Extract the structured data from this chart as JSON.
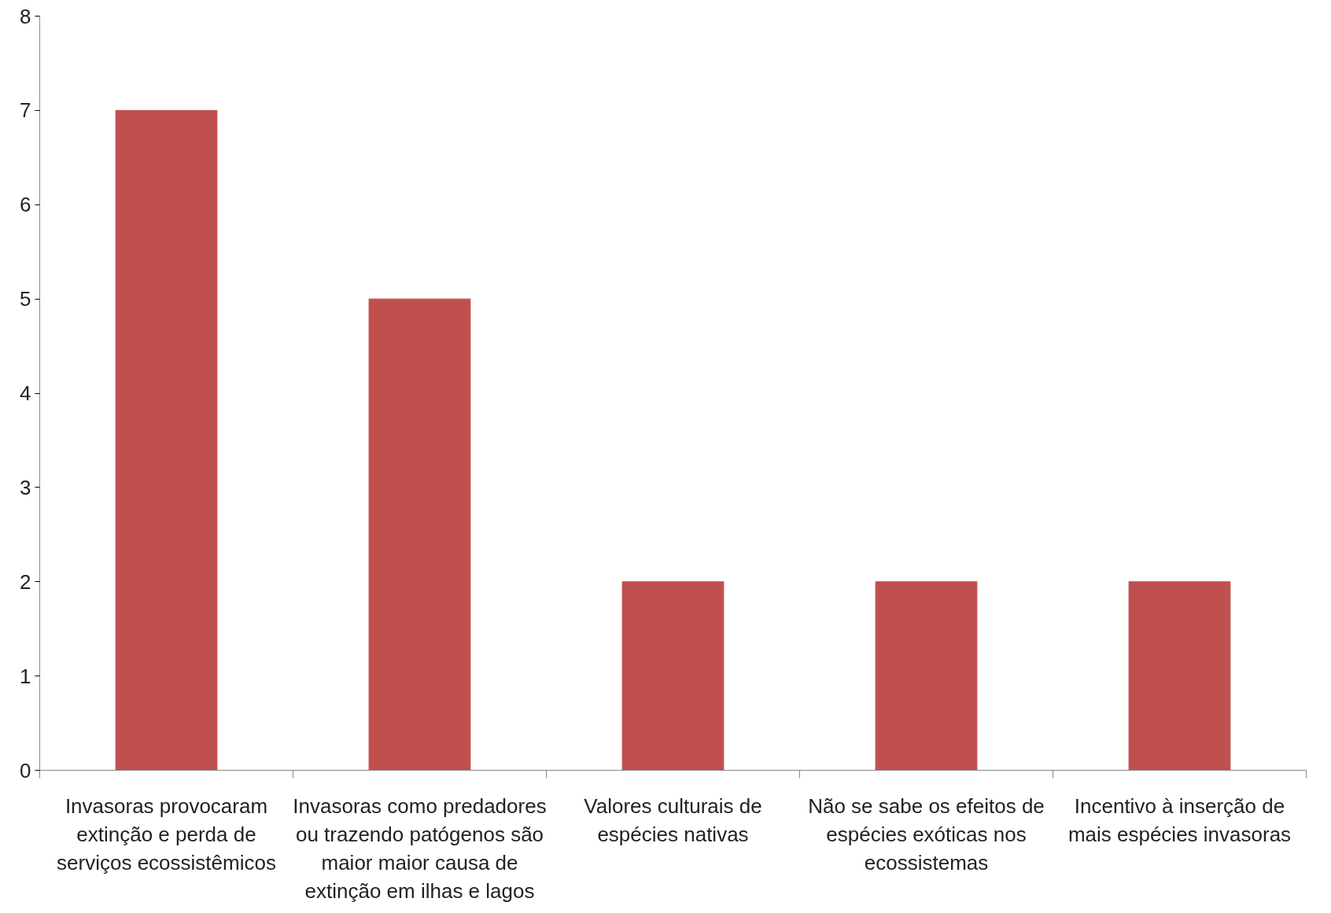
{
  "chart_data": {
    "type": "bar",
    "categories": [
      "Invasoras provocaram extinção e perda de serviços ecossistêmicos",
      "Invasoras como predadores ou trazendo patógenos são maior maior causa de extinção em ilhas e lagos",
      "Valores culturais de espécies nativas",
      "Não se sabe os efeitos de espécies exóticas nos ecossistemas",
      "Incentivo à inserção de mais espécies invasoras"
    ],
    "values": [
      7,
      5,
      2,
      2,
      2
    ],
    "color": "#c0504d",
    "ylim": [
      0,
      8
    ],
    "yticks": [
      0,
      1,
      2,
      3,
      4,
      5,
      6,
      7,
      8
    ],
    "grid": false
  }
}
